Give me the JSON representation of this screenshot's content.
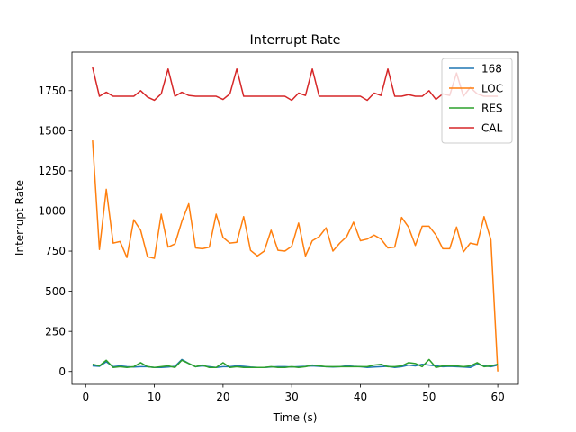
{
  "chart_data": {
    "type": "line",
    "title": "Interrupt Rate",
    "xlabel": "Time (s)",
    "ylabel": "Interrupt Rate",
    "xlim": [
      -2,
      63
    ],
    "ylim": [
      -80,
      1990
    ],
    "xticks": [
      0,
      10,
      20,
      30,
      40,
      50,
      60
    ],
    "yticks": [
      0,
      250,
      500,
      750,
      1000,
      1250,
      1500,
      1750
    ],
    "grid": false,
    "legend_position": "top-right",
    "x": [
      1,
      2,
      3,
      4,
      5,
      6,
      7,
      8,
      9,
      10,
      11,
      12,
      13,
      14,
      15,
      16,
      17,
      18,
      19,
      20,
      21,
      22,
      23,
      24,
      25,
      26,
      27,
      28,
      29,
      30,
      31,
      32,
      33,
      34,
      35,
      36,
      37,
      38,
      39,
      40,
      41,
      42,
      43,
      44,
      45,
      46,
      47,
      48,
      49,
      50,
      51,
      52,
      53,
      54,
      55,
      56,
      57,
      58,
      59,
      60
    ],
    "series": [
      {
        "name": "168",
        "color": "#1f77b4",
        "values": [
          35,
          32,
          60,
          30,
          35,
          30,
          28,
          30,
          30,
          25,
          25,
          28,
          32,
          75,
          50,
          30,
          35,
          30,
          25,
          30,
          30,
          35,
          32,
          28,
          25,
          25,
          28,
          30,
          30,
          28,
          30,
          32,
          35,
          32,
          30,
          28,
          30,
          35,
          32,
          30,
          25,
          28,
          30,
          32,
          25,
          30,
          40,
          35,
          45,
          40,
          35,
          30,
          32,
          30,
          28,
          25,
          45,
          35,
          30,
          40
        ]
      },
      {
        "name": "LOC",
        "color": "#ff7f0e",
        "values": [
          1440,
          760,
          1135,
          800,
          810,
          710,
          945,
          880,
          715,
          705,
          980,
          775,
          795,
          935,
          1045,
          770,
          765,
          775,
          980,
          835,
          800,
          805,
          965,
          755,
          720,
          750,
          880,
          755,
          750,
          780,
          925,
          720,
          815,
          840,
          895,
          750,
          800,
          840,
          930,
          815,
          825,
          850,
          825,
          770,
          775,
          960,
          900,
          785,
          905,
          905,
          850,
          765,
          765,
          900,
          745,
          800,
          790,
          965,
          820,
          0
        ]
      },
      {
        "name": "RES",
        "color": "#2ca02c",
        "values": [
          45,
          35,
          70,
          25,
          30,
          25,
          30,
          55,
          30,
          25,
          30,
          35,
          25,
          70,
          50,
          30,
          40,
          25,
          25,
          55,
          25,
          30,
          25,
          25,
          25,
          25,
          30,
          25,
          25,
          30,
          25,
          30,
          40,
          35,
          30,
          30,
          30,
          30,
          30,
          30,
          30,
          40,
          45,
          30,
          30,
          35,
          55,
          50,
          30,
          75,
          25,
          35,
          35,
          35,
          30,
          35,
          55,
          30,
          35,
          45
        ]
      },
      {
        "name": "CAL",
        "color": "#d62728",
        "values": [
          1895,
          1715,
          1740,
          1715,
          1715,
          1715,
          1715,
          1750,
          1710,
          1690,
          1730,
          1885,
          1715,
          1740,
          1720,
          1715,
          1715,
          1715,
          1715,
          1695,
          1730,
          1885,
          1715,
          1715,
          1715,
          1715,
          1715,
          1715,
          1715,
          1690,
          1735,
          1720,
          1885,
          1715,
          1715,
          1715,
          1715,
          1715,
          1715,
          1715,
          1690,
          1735,
          1720,
          1885,
          1715,
          1715,
          1725,
          1715,
          1715,
          1750,
          1695,
          1730,
          1720,
          1860,
          1715,
          1770,
          1730,
          1715,
          1715,
          1715
        ]
      }
    ]
  }
}
